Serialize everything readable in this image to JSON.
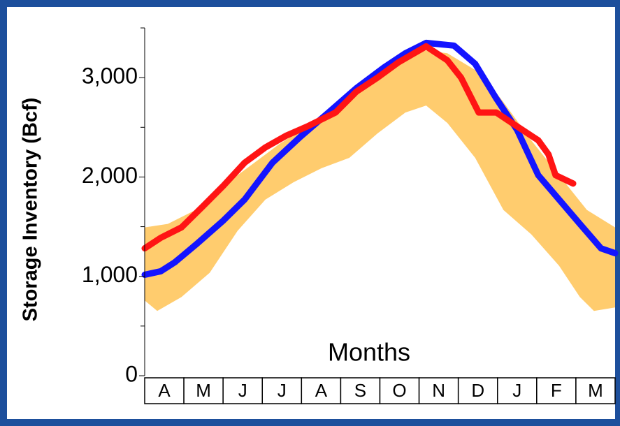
{
  "chart_data": {
    "type": "line",
    "xlabel": "Months",
    "ylabel": "Storage Inventory (Bcf)",
    "categories": [
      "A",
      "M",
      "J",
      "J",
      "A",
      "S",
      "O",
      "N",
      "D",
      "J",
      "F",
      "M"
    ],
    "xlim": [
      0,
      12
    ],
    "ylim": [
      0,
      3500
    ],
    "yticks": [
      0,
      {
        "value": 1000,
        "label": "1,000"
      },
      {
        "value": 2000,
        "label": "2,000"
      },
      {
        "value": 3000,
        "label": "3,000"
      }
    ],
    "minor_yticks": [
      500,
      1500,
      2500,
      3500
    ],
    "band": {
      "color": "#ffcc6e",
      "upper": {
        "x": [
          0,
          0.59,
          1.3,
          2.01,
          2.73,
          3.44,
          4.15,
          4.87,
          5.58,
          6.29,
          7.0,
          7.72,
          8.61,
          9.15,
          9.86,
          10.57,
          11.28,
          12.0
        ],
        "values": [
          1493,
          1528,
          1668,
          1913,
          2123,
          2333,
          2509,
          2684,
          2894,
          3069,
          3280,
          3245,
          3034,
          2754,
          2369,
          2018,
          1668,
          1493
        ]
      },
      "lower": {
        "x": [
          0,
          0.32,
          0.94,
          1.66,
          2.37,
          3.08,
          3.8,
          4.51,
          5.22,
          5.94,
          6.65,
          7.18,
          7.72,
          8.43,
          9.15,
          9.86,
          10.57,
          11.1,
          11.46,
          12.0
        ],
        "values": [
          757,
          652,
          792,
          1037,
          1458,
          1773,
          1948,
          2088,
          2193,
          2439,
          2649,
          2719,
          2544,
          2193,
          1668,
          1423,
          1107,
          792,
          652,
          687
        ]
      }
    },
    "series": [
      {
        "color": "#1414ff",
        "x": [
          0,
          0.41,
          0.77,
          1.3,
          2.01,
          2.55,
          3.26,
          3.97,
          4.69,
          5.4,
          6.11,
          6.65,
          7.18,
          7.89,
          8.43,
          8.97,
          9.5,
          10.04,
          10.57,
          11.1,
          11.64,
          12.0
        ],
        "values": [
          1016,
          1051,
          1142,
          1317,
          1563,
          1773,
          2144,
          2404,
          2649,
          2894,
          3104,
          3245,
          3350,
          3322,
          3139,
          2789,
          2474,
          2018,
          1773,
          1528,
          1282,
          1233
        ]
      },
      {
        "color": "#ff1414",
        "x": [
          0,
          0.41,
          0.94,
          1.48,
          2.01,
          2.55,
          3.08,
          3.62,
          4.15,
          4.87,
          5.4,
          5.94,
          6.47,
          7.18,
          7.72,
          8.07,
          8.52,
          8.97,
          9.5,
          10.04,
          10.3,
          10.48,
          10.93
        ],
        "values": [
          1282,
          1388,
          1493,
          1703,
          1913,
          2144,
          2298,
          2418,
          2509,
          2649,
          2859,
          3000,
          3153,
          3315,
          3174,
          3000,
          2649,
          2649,
          2509,
          2369,
          2228,
          2018,
          1934
        ]
      }
    ]
  }
}
